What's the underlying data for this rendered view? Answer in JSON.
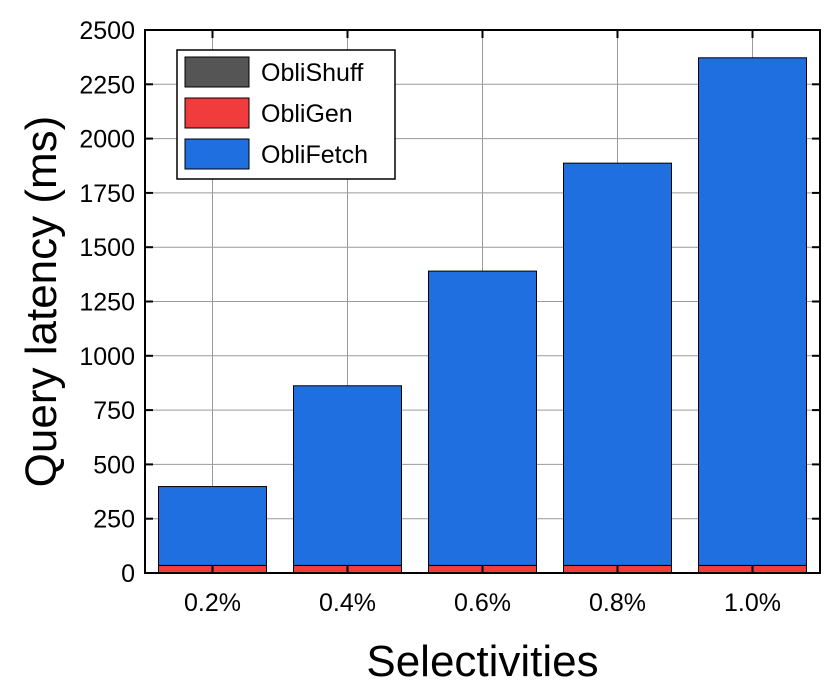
{
  "chart_data": {
    "type": "bar",
    "stacked": true,
    "categories": [
      "0.2%",
      "0.4%",
      "0.6%",
      "0.8%",
      "1.0%"
    ],
    "series": [
      {
        "name": "ObliShuff",
        "color": "#555555",
        "values": [
          2,
          2,
          2,
          2,
          2
        ]
      },
      {
        "name": "ObliGen",
        "color": "#f03c3c",
        "values": [
          33,
          33,
          33,
          33,
          33
        ]
      },
      {
        "name": "ObliFetch",
        "color": "#1f6fe0",
        "values": [
          363,
          827,
          1355,
          1852,
          2337
        ]
      }
    ],
    "xlabel": "Selectivities",
    "ylabel": "Query latency (ms)",
    "ylim": [
      0,
      2500
    ],
    "yticks": [
      0,
      250,
      500,
      750,
      1000,
      1250,
      1500,
      1750,
      2000,
      2250,
      2500
    ],
    "grid": true,
    "legend_position": "top-left"
  }
}
